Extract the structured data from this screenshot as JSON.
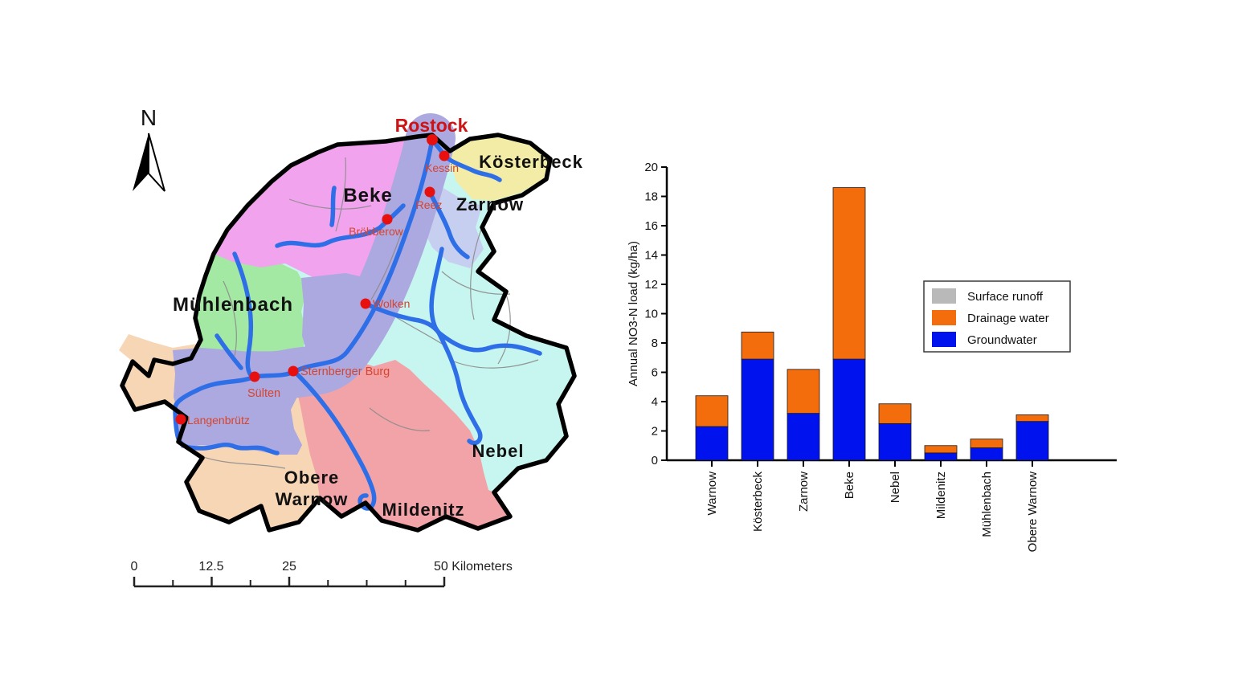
{
  "map": {
    "north_label": "N",
    "city": "Rostock",
    "towns": [
      "Kessin",
      "Reez",
      "Bröbberow",
      "Wolken",
      "Sternberger Burg",
      "Sülten",
      "Langenbrütz"
    ],
    "basins": [
      "Beke",
      "Kösterbeck",
      "Zarnow",
      "Mühlenbach",
      "Nebel",
      "Mildenitz"
    ],
    "obere_warnow_line1": "Obere",
    "obere_warnow_line2": "Warnow",
    "scale_labels": [
      "0",
      "12.5",
      "25",
      "50 Kilometers"
    ],
    "colors": {
      "beke": "#F2A3EE",
      "koesterbeck": "#F2ECA6",
      "zarnow": "#C7CFF0",
      "warnow_corridor": "#ACA8E0",
      "muehlenbach": "#A3E8A3",
      "nebel": "#C7F5F0",
      "mildenitz": "#F2A3A8",
      "obere_warnow": "#F7D6B6",
      "river": "#2E6FE8",
      "marker": "#E8100F",
      "outline": "#000000",
      "inner_border": "#8C8C8C",
      "town_label": "#D6452E",
      "city_label": "#CC1414"
    }
  },
  "chart_data": {
    "type": "bar",
    "stacked": true,
    "title": "",
    "xlabel": "",
    "ylabel": "Annual NO3-N load (kg/ha)",
    "ylim": [
      0,
      20
    ],
    "ytick_step": 2,
    "grid": false,
    "legend_position": "inside-right",
    "categories": [
      "Warnow",
      "Kösterbeck",
      "Zarnow",
      "Beke",
      "Nebel",
      "Mildenitz",
      "Mühlenbach",
      "Obere Warnow"
    ],
    "series": [
      {
        "name": "Surface runoff",
        "color": "#B9B9B9",
        "values": [
          0,
          0,
          0,
          0,
          0,
          0,
          0,
          0
        ]
      },
      {
        "name": "Drainage water",
        "color": "#F36D0D",
        "values": [
          2.1,
          1.85,
          3.0,
          11.7,
          1.35,
          0.5,
          0.6,
          0.45
        ]
      },
      {
        "name": "Groundwater",
        "color": "#0013EE",
        "values": [
          2.3,
          6.9,
          3.2,
          6.9,
          2.5,
          0.5,
          0.85,
          2.65
        ]
      }
    ],
    "totals": [
      4.4,
      8.75,
      6.2,
      18.6,
      3.85,
      1.0,
      1.45,
      3.1
    ]
  }
}
